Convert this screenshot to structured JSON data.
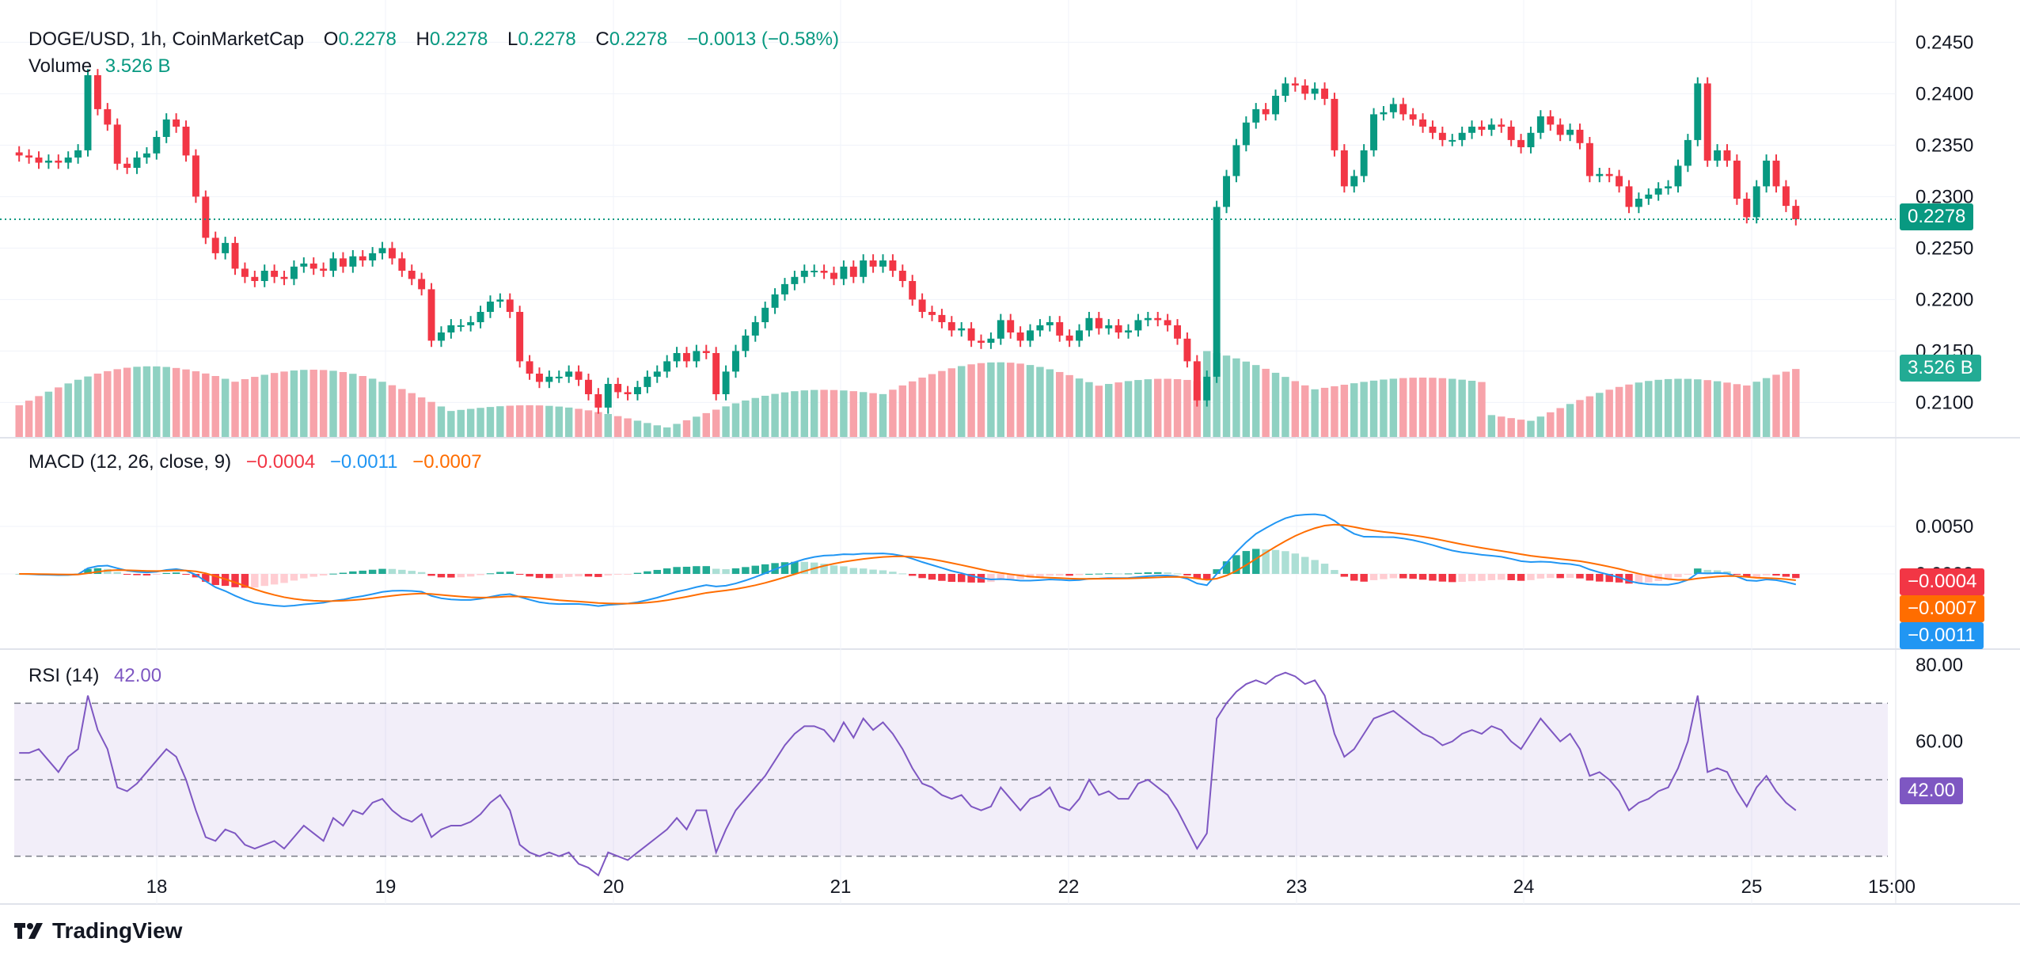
{
  "header": {
    "symbol": "DOGE/USD, 1h, CoinMarketCap",
    "o_label": "O",
    "o": "0.2278",
    "h_label": "H",
    "h": "0.2278",
    "l_label": "L",
    "l": "0.2278",
    "c_label": "C",
    "c": "0.2278",
    "change": "−0.0013 (−0.58%)",
    "volume_label": "Volume",
    "volume": "3.526 B"
  },
  "macd_legend": {
    "label": "MACD (12, 26, close, 9)",
    "hist": "−0.0004",
    "macd": "−0.0011",
    "signal": "−0.0007"
  },
  "rsi_legend": {
    "label": "RSI (14)",
    "value": "42.00"
  },
  "tags": {
    "price": "0.2278",
    "volume": "3.526 B",
    "hist": "−0.0004",
    "signal": "−0.0007",
    "macd": "−0.0011",
    "rsi": "42.00"
  },
  "footer": {
    "brand": "TradingView"
  },
  "colors": {
    "up": "#089981",
    "down": "#f23645",
    "vol_up": "#8fd1c2",
    "vol_down": "#f7a3aa",
    "macd": "#2196f3",
    "signal": "#ff6d00",
    "rsi": "#7e57c2"
  },
  "chart_data": [
    {
      "type": "candlestick",
      "title": "DOGE/USD, 1h, CoinMarketCap",
      "x_ticks": [
        "18",
        "19",
        "20",
        "21",
        "22",
        "23",
        "24",
        "25",
        "15:00"
      ],
      "y_ticks": [
        0.245,
        0.24,
        0.235,
        0.23,
        0.225,
        0.22,
        0.215,
        0.21
      ],
      "ylim": [
        0.2068,
        0.2468
      ],
      "last_price": 0.2278,
      "close": [
        0.234,
        0.2338,
        0.2333,
        0.2335,
        0.2333,
        0.2338,
        0.2345,
        0.2418,
        0.2385,
        0.237,
        0.2332,
        0.2328,
        0.2338,
        0.2342,
        0.2358,
        0.2375,
        0.2368,
        0.234,
        0.23,
        0.226,
        0.2245,
        0.2255,
        0.223,
        0.2222,
        0.2218,
        0.2228,
        0.2222,
        0.222,
        0.2232,
        0.2235,
        0.223,
        0.2228,
        0.224,
        0.2232,
        0.2242,
        0.2238,
        0.2245,
        0.225,
        0.224,
        0.2228,
        0.222,
        0.221,
        0.216,
        0.2168,
        0.2175,
        0.2175,
        0.2178,
        0.2188,
        0.2198,
        0.22,
        0.2188,
        0.214,
        0.2128,
        0.212,
        0.2125,
        0.2125,
        0.213,
        0.2122,
        0.2108,
        0.2095,
        0.2118,
        0.211,
        0.2108,
        0.2115,
        0.2125,
        0.213,
        0.214,
        0.2148,
        0.214,
        0.215,
        0.2148,
        0.2108,
        0.213,
        0.215,
        0.2165,
        0.2178,
        0.2192,
        0.2205,
        0.2215,
        0.2222,
        0.2228,
        0.2228,
        0.2226,
        0.222,
        0.2232,
        0.2222,
        0.2238,
        0.2232,
        0.2238,
        0.2228,
        0.2218,
        0.22,
        0.2188,
        0.2185,
        0.2178,
        0.217,
        0.2172,
        0.216,
        0.2158,
        0.2162,
        0.218,
        0.2168,
        0.216,
        0.217,
        0.2175,
        0.2178,
        0.2165,
        0.216,
        0.217,
        0.2182,
        0.2172,
        0.2175,
        0.2168,
        0.217,
        0.218,
        0.2182,
        0.218,
        0.2175,
        0.2162,
        0.214,
        0.2102,
        0.2125,
        0.229,
        0.232,
        0.235,
        0.2372,
        0.2385,
        0.238,
        0.2398,
        0.241,
        0.2408,
        0.24,
        0.2405,
        0.2395,
        0.2345,
        0.231,
        0.232,
        0.2345,
        0.238,
        0.2382,
        0.239,
        0.238,
        0.2375,
        0.2368,
        0.2362,
        0.2355,
        0.2355,
        0.2362,
        0.2368,
        0.2365,
        0.237,
        0.2368,
        0.2355,
        0.2348,
        0.2362,
        0.2378,
        0.237,
        0.236,
        0.2365,
        0.2352,
        0.232,
        0.2322,
        0.232,
        0.231,
        0.229,
        0.2298,
        0.2302,
        0.2308,
        0.231,
        0.233,
        0.2355,
        0.241,
        0.2335,
        0.2345,
        0.2335,
        0.2298,
        0.228,
        0.231,
        0.2335,
        0.231,
        0.2291,
        0.2278
      ]
    },
    {
      "type": "bar",
      "title": "Volume",
      "value": "3.526 B",
      "note": "hourly volume bars colored by candle direction"
    },
    {
      "type": "line",
      "title": "MACD (12, 26, close, 9)",
      "y_ticks": [
        0.005,
        0.0
      ],
      "series": [
        {
          "name": "MACD",
          "last": -0.0011
        },
        {
          "name": "Signal",
          "last": -0.0007
        },
        {
          "name": "Histogram",
          "last": -0.0004
        }
      ]
    },
    {
      "type": "line",
      "title": "RSI (14)",
      "y_ticks": [
        80.0,
        60.0
      ],
      "bands": [
        70,
        50,
        30
      ],
      "ylim": [
        20,
        80
      ],
      "series": [
        {
          "name": "RSI",
          "last": 42.0,
          "values": [
            57,
            57,
            58,
            55,
            52,
            56,
            58,
            72,
            63,
            58,
            48,
            47,
            49,
            52,
            55,
            58,
            56,
            50,
            42,
            35,
            34,
            37,
            36,
            33,
            32,
            33,
            34,
            32,
            35,
            38,
            36,
            34,
            40,
            38,
            42,
            41,
            44,
            45,
            42,
            40,
            39,
            41,
            35,
            37,
            38,
            38,
            39,
            41,
            44,
            46,
            42,
            33,
            31,
            30,
            31,
            30,
            31,
            28,
            27,
            25,
            31,
            30,
            29,
            31,
            33,
            35,
            37,
            40,
            37,
            42,
            42,
            31,
            37,
            42,
            45,
            48,
            51,
            55,
            59,
            62,
            64,
            64,
            63,
            60,
            65,
            61,
            66,
            63,
            65,
            62,
            58,
            53,
            49,
            48,
            46,
            45,
            46,
            43,
            42,
            43,
            48,
            45,
            42,
            45,
            46,
            48,
            43,
            42,
            45,
            50,
            46,
            47,
            45,
            45,
            49,
            50,
            48,
            46,
            42,
            37,
            32,
            36,
            66,
            70,
            73,
            75,
            76,
            75,
            77,
            78,
            77,
            75,
            76,
            72,
            62,
            56,
            58,
            62,
            66,
            67,
            68,
            66,
            64,
            62,
            61,
            59,
            60,
            62,
            63,
            62,
            64,
            63,
            60,
            58,
            62,
            66,
            63,
            60,
            62,
            58,
            51,
            52,
            50,
            47,
            42,
            44,
            45,
            47,
            48,
            53,
            60,
            72,
            52,
            53,
            52,
            47,
            43,
            48,
            51,
            47,
            44,
            42
          ]
        }
      ]
    }
  ]
}
